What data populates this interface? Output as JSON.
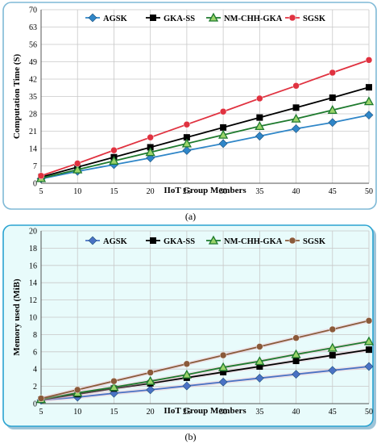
{
  "captions": [
    "(a)",
    "(b)"
  ],
  "chart_data": [
    {
      "type": "line",
      "xlabel": "IIoT Group Members",
      "ylabel": "Computation Time (S)",
      "x": [
        5,
        10,
        15,
        20,
        25,
        30,
        35,
        40,
        45,
        50
      ],
      "xlim": [
        5,
        50
      ],
      "ylim": [
        0,
        70
      ],
      "yticks": [
        0,
        7,
        14,
        21,
        28,
        35,
        42,
        49,
        56,
        63,
        70
      ],
      "grid": true,
      "legend": "top",
      "background": "#ffffff",
      "frame_color": "#7fb9d6",
      "series": [
        {
          "name": "AGSK",
          "color": "#2f86c8",
          "marker": "diamond",
          "values": [
            1.8,
            4.8,
            7.5,
            10.2,
            13.2,
            16.0,
            19.0,
            22.0,
            24.5,
            27.5
          ]
        },
        {
          "name": "GKA-SS",
          "color": "#000000",
          "marker": "square",
          "values": [
            2.5,
            6.5,
            10.5,
            14.5,
            18.5,
            22.5,
            26.5,
            30.5,
            34.5,
            38.7
          ]
        },
        {
          "name": "NM-CHH-GKA",
          "color": "#1e7a2e",
          "marker": "triangle",
          "values": [
            2.0,
            5.5,
            9.0,
            12.5,
            16.0,
            19.5,
            23.0,
            26.0,
            29.5,
            33.0
          ]
        },
        {
          "name": "SGSK",
          "color": "#e03240",
          "marker": "circle",
          "values": [
            3.0,
            8.0,
            13.3,
            18.5,
            23.7,
            28.9,
            34.2,
            39.3,
            44.6,
            49.7
          ]
        }
      ]
    },
    {
      "type": "line",
      "xlabel": "IIoT Group Members",
      "ylabel": "Memory used (MiB)",
      "x": [
        5,
        10,
        15,
        20,
        25,
        30,
        35,
        40,
        45,
        50
      ],
      "xlim": [
        5,
        50
      ],
      "ylim": [
        0,
        20
      ],
      "yticks": [
        0,
        2,
        4,
        6,
        8,
        10,
        12,
        14,
        16,
        18,
        20
      ],
      "grid": true,
      "legend": "top",
      "background": "#e8fbfb",
      "frame_color": "#2aa3d1",
      "series": [
        {
          "name": "AGSK",
          "color": "#4a72c4",
          "marker": "diamond",
          "values": [
            0.4,
            0.75,
            1.2,
            1.6,
            2.05,
            2.5,
            2.95,
            3.4,
            3.85,
            4.3
          ]
        },
        {
          "name": "GKA-SS",
          "color": "#000000",
          "marker": "square",
          "values": [
            0.45,
            1.1,
            1.75,
            2.35,
            3.0,
            3.65,
            4.3,
            4.95,
            5.6,
            6.25
          ]
        },
        {
          "name": "NM-CHH-GKA",
          "color": "#1e7a2e",
          "marker": "triangle",
          "values": [
            0.5,
            1.25,
            1.9,
            2.6,
            3.35,
            4.2,
            4.9,
            5.7,
            6.45,
            7.2
          ]
        },
        {
          "name": "SGSK",
          "color": "#8a5a3a",
          "marker": "circle",
          "values": [
            0.6,
            1.6,
            2.6,
            3.6,
            4.6,
            5.6,
            6.6,
            7.6,
            8.6,
            9.6
          ]
        }
      ]
    }
  ]
}
